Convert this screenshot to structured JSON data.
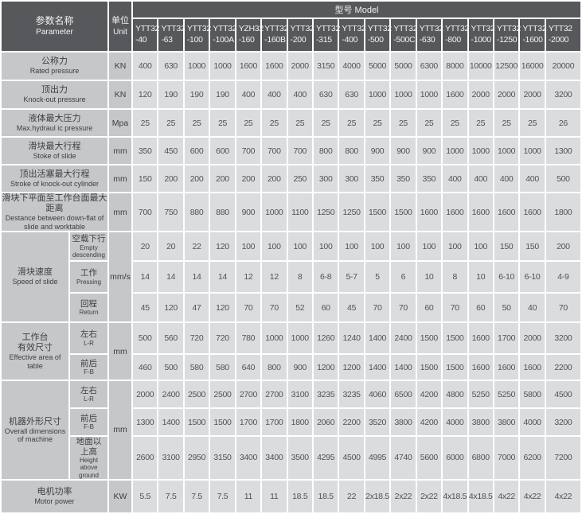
{
  "colors": {
    "header_bg": "#56585b",
    "label_bg": "#c6c7c9",
    "cell_bg": "#dbdcde"
  },
  "header": {
    "parameter_zh": "参数名称",
    "parameter_en": "Parameter",
    "unit_zh": "单位",
    "unit_en": "Unit",
    "model_group": "型号 Model",
    "models": [
      {
        "series": "YTT32",
        "size": "-40"
      },
      {
        "series": "YTT32",
        "size": "-63"
      },
      {
        "series": "YTT32",
        "size": "-100"
      },
      {
        "series": "YTT32",
        "size": "-100A"
      },
      {
        "series": "YZH32",
        "size": "-160"
      },
      {
        "series": "YTT32",
        "size": "-160B"
      },
      {
        "series": "YTT32",
        "size": "-200"
      },
      {
        "series": "YTT32",
        "size": "-315"
      },
      {
        "series": "YTT32",
        "size": "-400"
      },
      {
        "series": "YTT32",
        "size": "-500"
      },
      {
        "series": "YTT32",
        "size": "-500C"
      },
      {
        "series": "YTT32",
        "size": "-630"
      },
      {
        "series": "YTT32",
        "size": "-800"
      },
      {
        "series": "YTT32",
        "size": "-1000"
      },
      {
        "series": "YTT32",
        "size": "-1250"
      },
      {
        "series": "YTT32",
        "size": "-1600"
      },
      {
        "series": "YTT32",
        "size": "-2000"
      }
    ]
  },
  "rows": [
    {
      "zh": "公称力",
      "en": "Rated pressure",
      "unit": "KN",
      "values": [
        "400",
        "630",
        "1000",
        "1000",
        "1600",
        "1600",
        "2000",
        "3150",
        "4000",
        "5000",
        "5000",
        "6300",
        "8000",
        "10000",
        "12500",
        "16000",
        "20000"
      ]
    },
    {
      "zh": "顶出力",
      "en": "Knock-out pressure",
      "unit": "KN",
      "values": [
        "120",
        "190",
        "190",
        "190",
        "400",
        "400",
        "400",
        "630",
        "630",
        "1000",
        "1000",
        "1000",
        "1600",
        "2000",
        "2000",
        "2000",
        "3200"
      ]
    },
    {
      "zh": "液体最大压力",
      "en": "Max.hydraul ic pressure",
      "unit": "Mpa",
      "values": [
        "25",
        "25",
        "25",
        "25",
        "25",
        "25",
        "25",
        "25",
        "25",
        "25",
        "25",
        "25",
        "25",
        "25",
        "25",
        "25",
        "26"
      ]
    },
    {
      "zh": "滑块最大行程",
      "en": "Stoke of slide",
      "unit": "mm",
      "values": [
        "350",
        "450",
        "600",
        "600",
        "700",
        "700",
        "700",
        "800",
        "800",
        "900",
        "900",
        "900",
        "1000",
        "1000",
        "1000",
        "1000",
        "1300"
      ]
    },
    {
      "zh": "顶出活塞最大行程",
      "en": "Stroke of knock-out cylinder",
      "unit": "mm",
      "values": [
        "150",
        "200",
        "200",
        "200",
        "200",
        "200",
        "250",
        "300",
        "300",
        "350",
        "350",
        "350",
        "400",
        "400",
        "400",
        "400",
        "500"
      ]
    },
    {
      "zh": "滑块下平面至工作台面最大距离",
      "en": "Destance between down-flat of slide and worktable",
      "unit": "mm",
      "values": [
        "700",
        "750",
        "880",
        "880",
        "900",
        "1000",
        "1100",
        "1250",
        "1250",
        "1500",
        "1500",
        "1600",
        "1600",
        "1600",
        "1600",
        "1600",
        "1800"
      ]
    },
    {
      "zh": "滑块速度",
      "en": "Speed of slide",
      "unit": "mm/s",
      "subrows": [
        {
          "zh": "空载下行",
          "en": "Empty descending",
          "values": [
            "20",
            "20",
            "22",
            "120",
            "100",
            "100",
            "100",
            "100",
            "100",
            "100",
            "100",
            "100",
            "100",
            "100",
            "150",
            "150",
            "200"
          ]
        },
        {
          "zh": "工作",
          "en": "Pressing",
          "values": [
            "14",
            "14",
            "14",
            "14",
            "12",
            "12",
            "8",
            "6-8",
            "5-7",
            "5",
            "6",
            "10",
            "8",
            "10",
            "6-10",
            "6-10",
            "4-9"
          ]
        },
        {
          "zh": "回程",
          "en": "Return",
          "values": [
            "45",
            "120",
            "47",
            "120",
            "70",
            "70",
            "52",
            "60",
            "45",
            "70",
            "70",
            "60",
            "70",
            "60",
            "50",
            "40",
            "70"
          ]
        }
      ]
    },
    {
      "zh": "工作台\n有效尺寸",
      "en": "Effective area of table",
      "unit": "mm",
      "subrows": [
        {
          "zh": "左右",
          "en": "L-R",
          "values": [
            "500",
            "560",
            "720",
            "720",
            "780",
            "1000",
            "1000",
            "1260",
            "1240",
            "1400",
            "2400",
            "1500",
            "1500",
            "1600",
            "1700",
            "2000",
            "3200"
          ]
        },
        {
          "zh": "前后",
          "en": "F-B",
          "values": [
            "460",
            "500",
            "580",
            "580",
            "640",
            "800",
            "900",
            "1200",
            "1200",
            "1400",
            "1400",
            "1500",
            "1500",
            "1600",
            "1600",
            "1600",
            "2200"
          ]
        }
      ]
    },
    {
      "zh": "机器外形尺寸",
      "en": "Overall dimensions of machine",
      "unit": "mm",
      "subrows": [
        {
          "zh": "左右",
          "en": "L-R",
          "values": [
            "2000",
            "2400",
            "2500",
            "2500",
            "2700",
            "2700",
            "3100",
            "3235",
            "3235",
            "4060",
            "6500",
            "4200",
            "4800",
            "5250",
            "5250",
            "5800",
            "4500"
          ]
        },
        {
          "zh": "前后",
          "en": "F-B",
          "values": [
            "1300",
            "1400",
            "1500",
            "1500",
            "1700",
            "1700",
            "1800",
            "2060",
            "2200",
            "3520",
            "3800",
            "4200",
            "4000",
            "3800",
            "3800",
            "4000",
            "3200"
          ]
        },
        {
          "zh": "地面以\n上高",
          "en": "Height above ground",
          "values": [
            "2600",
            "3100",
            "2950",
            "3150",
            "3400",
            "3400",
            "3500",
            "4295",
            "4500",
            "4995",
            "4740",
            "5600",
            "6000",
            "6800",
            "7000",
            "6200",
            "7200"
          ]
        }
      ]
    },
    {
      "zh": "电机功率",
      "en": "Motor power",
      "unit": "KW",
      "values": [
        "5.5",
        "7.5",
        "7.5",
        "7.5",
        "11",
        "11",
        "18.5",
        "18.5",
        "22",
        "2x18.5",
        "2x22",
        "2x22",
        "4x18.5",
        "4x18.5",
        "4x22",
        "4x22",
        "4x22"
      ]
    }
  ]
}
